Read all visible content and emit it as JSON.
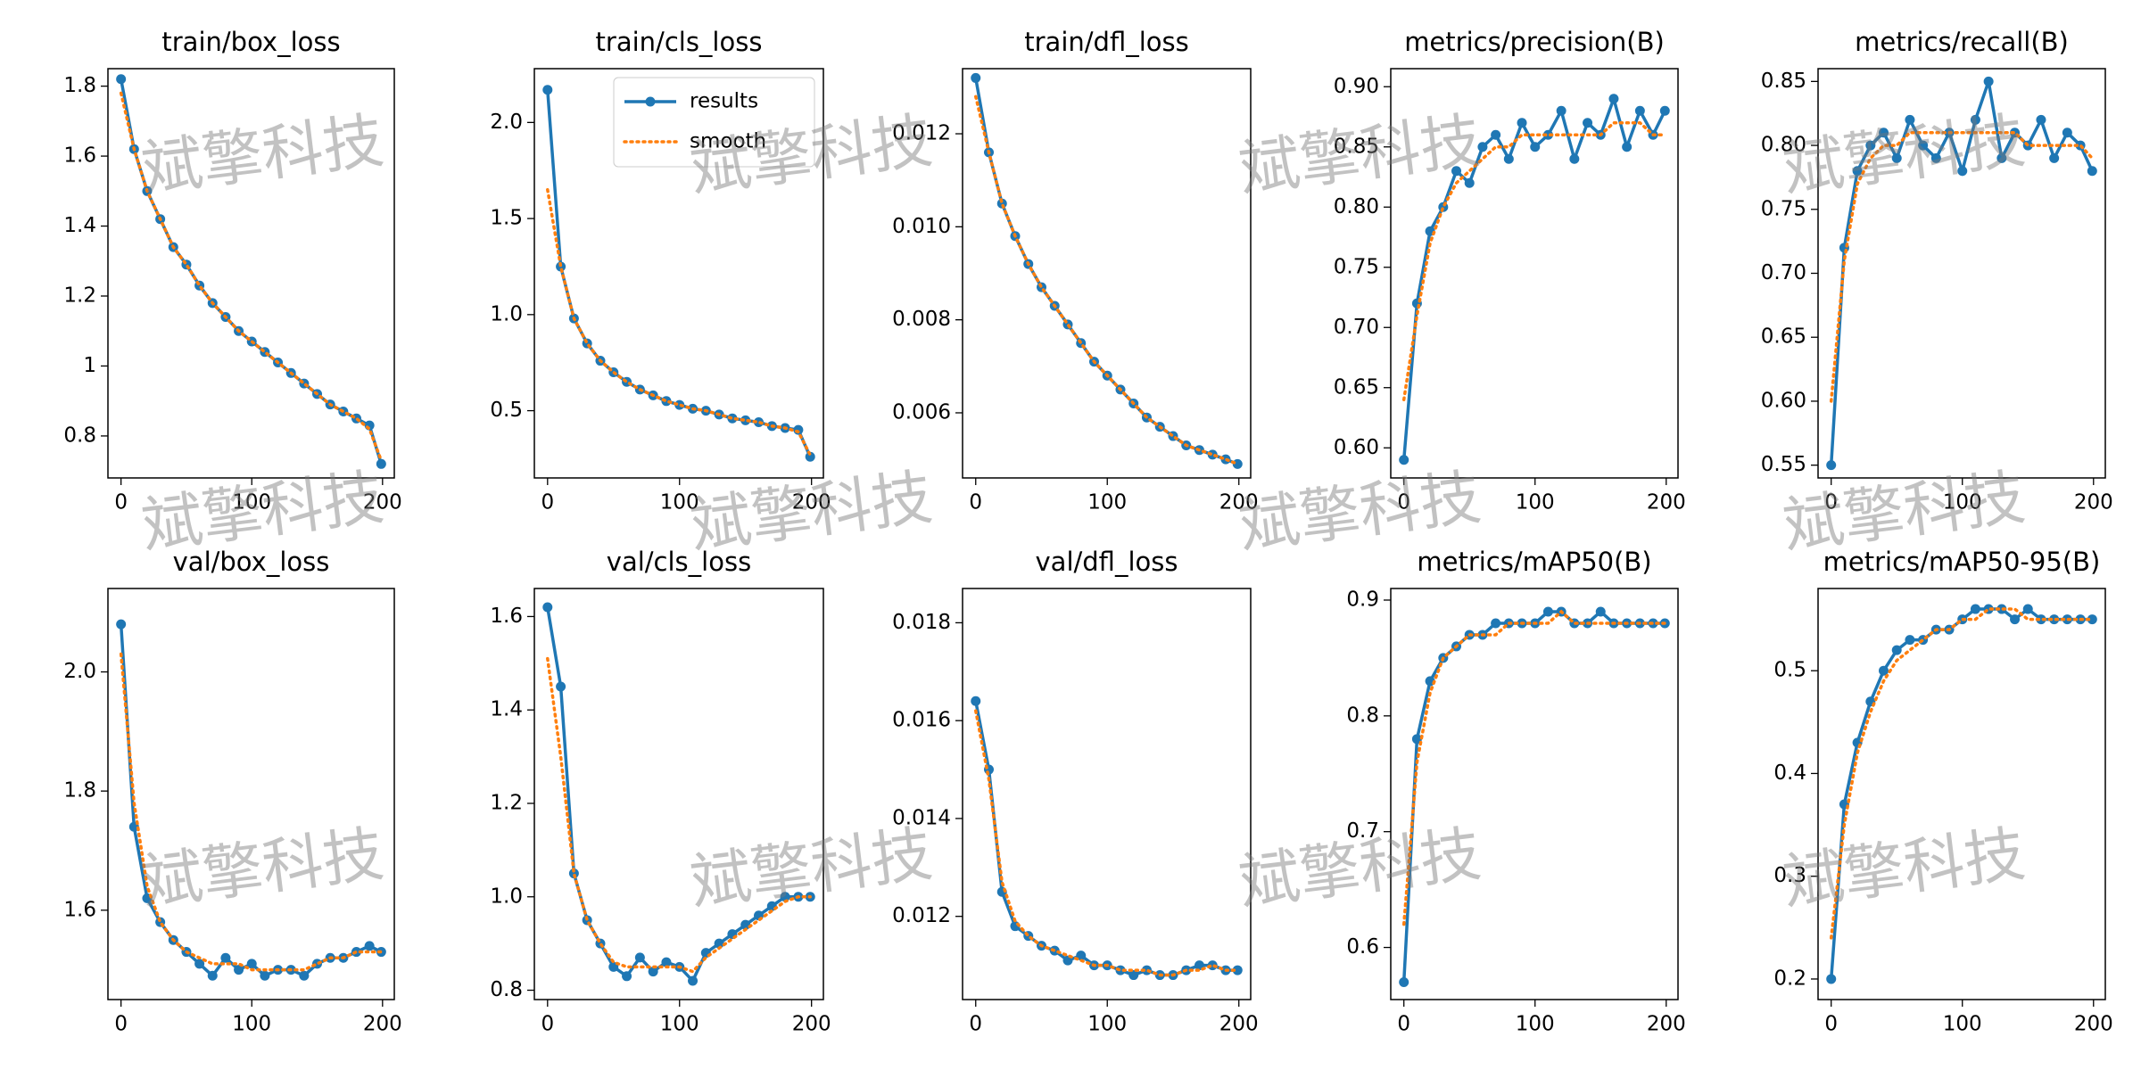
{
  "watermark": "斌擎科技",
  "chart_data": [
    {
      "type": "line",
      "title": "train/box_loss",
      "x": [
        0,
        10,
        20,
        30,
        40,
        50,
        60,
        70,
        80,
        90,
        100,
        110,
        120,
        130,
        140,
        150,
        160,
        170,
        180,
        190,
        199
      ],
      "xlim": [
        -10,
        209
      ],
      "xticks": [
        0,
        100,
        200
      ],
      "ylim": [
        0.68,
        1.85
      ],
      "yticks": [
        0.8,
        1.0,
        {
          "value": 1,
          "label": "1.0"
        },
        1.2,
        1.4,
        1.6,
        1.8
      ],
      "series": [
        {
          "name": "results",
          "color": "#1f77b4",
          "values": [
            1.82,
            1.62,
            1.5,
            1.42,
            1.34,
            1.29,
            1.23,
            1.18,
            1.14,
            1.1,
            1.07,
            1.04,
            1.01,
            0.98,
            0.95,
            0.92,
            0.89,
            0.87,
            0.85,
            0.83,
            0.72
          ]
        },
        {
          "name": "smooth",
          "color": "#ff7f0e",
          "values": [
            1.78,
            1.62,
            1.5,
            1.42,
            1.34,
            1.29,
            1.23,
            1.18,
            1.14,
            1.1,
            1.07,
            1.04,
            1.01,
            0.98,
            0.95,
            0.92,
            0.89,
            0.87,
            0.85,
            0.82,
            0.73
          ]
        }
      ]
    },
    {
      "type": "line",
      "title": "train/cls_loss",
      "legend": "upper right",
      "x": [
        0,
        10,
        20,
        30,
        40,
        50,
        60,
        70,
        80,
        90,
        100,
        110,
        120,
        130,
        140,
        150,
        160,
        170,
        180,
        190,
        199
      ],
      "xlim": [
        -10,
        209
      ],
      "xticks": [
        0,
        100,
        200
      ],
      "ylim": [
        0.15,
        2.28
      ],
      "yticks": [
        0.5,
        {
          "value": 1,
          "label": "1.0"
        },
        1.5,
        {
          "value": 2,
          "label": "2.0"
        }
      ],
      "series": [
        {
          "name": "results",
          "color": "#1f77b4",
          "values": [
            2.17,
            1.25,
            0.98,
            0.85,
            0.76,
            0.7,
            0.65,
            0.61,
            0.58,
            0.55,
            0.53,
            0.51,
            0.5,
            0.48,
            0.46,
            0.45,
            0.44,
            0.42,
            0.41,
            0.4,
            0.26
          ]
        },
        {
          "name": "smooth",
          "color": "#ff7f0e",
          "values": [
            1.65,
            1.25,
            0.98,
            0.85,
            0.76,
            0.7,
            0.65,
            0.61,
            0.58,
            0.55,
            0.53,
            0.51,
            0.5,
            0.48,
            0.46,
            0.45,
            0.44,
            0.42,
            0.41,
            0.39,
            0.27
          ]
        }
      ]
    },
    {
      "type": "line",
      "title": "train/dfl_loss",
      "x": [
        0,
        10,
        20,
        30,
        40,
        50,
        60,
        70,
        80,
        90,
        100,
        110,
        120,
        130,
        140,
        150,
        160,
        170,
        180,
        190,
        199
      ],
      "xlim": [
        -10,
        209
      ],
      "xticks": [
        0,
        100,
        200
      ],
      "ylim": [
        0.0046,
        0.0134
      ],
      "yticks": [
        0.006,
        0.008,
        {
          "value": 0.01,
          "label": "0.010"
        },
        0.012
      ],
      "series": [
        {
          "name": "results",
          "color": "#1f77b4",
          "values": [
            0.0132,
            0.0116,
            0.0105,
            0.0098,
            0.0092,
            0.0087,
            0.0083,
            0.0079,
            0.0075,
            0.0071,
            0.0068,
            0.0065,
            0.0062,
            0.0059,
            0.0057,
            0.0055,
            0.0053,
            0.0052,
            0.0051,
            0.005,
            0.0049
          ]
        },
        {
          "name": "smooth",
          "color": "#ff7f0e",
          "values": [
            0.0128,
            0.0116,
            0.0105,
            0.0098,
            0.0092,
            0.0087,
            0.0083,
            0.0079,
            0.0075,
            0.0071,
            0.0068,
            0.0065,
            0.0062,
            0.0059,
            0.0057,
            0.0055,
            0.0053,
            0.0052,
            0.0051,
            0.005,
            0.0049
          ]
        }
      ]
    },
    {
      "type": "line",
      "title": "metrics/precision(B)",
      "x": [
        0,
        10,
        20,
        30,
        40,
        50,
        60,
        70,
        80,
        90,
        100,
        110,
        120,
        130,
        140,
        150,
        160,
        170,
        180,
        190,
        199
      ],
      "xlim": [
        -10,
        209
      ],
      "xticks": [
        0,
        100,
        200
      ],
      "ylim": [
        0.575,
        0.915
      ],
      "yticks": [
        {
          "value": 0.6,
          "label": "0.60"
        },
        0.65,
        {
          "value": 0.7,
          "label": "0.70"
        },
        0.75,
        {
          "value": 0.8,
          "label": "0.80"
        },
        0.85,
        {
          "value": 0.9,
          "label": "0.90"
        }
      ],
      "series": [
        {
          "name": "results",
          "color": "#1f77b4",
          "values": [
            0.59,
            0.72,
            0.78,
            0.8,
            0.83,
            0.82,
            0.85,
            0.86,
            0.84,
            0.87,
            0.85,
            0.86,
            0.88,
            0.84,
            0.87,
            0.86,
            0.89,
            0.85,
            0.88,
            0.86,
            0.88
          ]
        },
        {
          "name": "smooth",
          "color": "#ff7f0e",
          "values": [
            0.64,
            0.71,
            0.77,
            0.8,
            0.82,
            0.83,
            0.84,
            0.85,
            0.85,
            0.86,
            0.86,
            0.86,
            0.86,
            0.86,
            0.86,
            0.86,
            0.87,
            0.87,
            0.87,
            0.86,
            0.86
          ]
        }
      ]
    },
    {
      "type": "line",
      "title": "metrics/recall(B)",
      "x": [
        0,
        10,
        20,
        30,
        40,
        50,
        60,
        70,
        80,
        90,
        100,
        110,
        120,
        130,
        140,
        150,
        160,
        170,
        180,
        190,
        199
      ],
      "xlim": [
        -10,
        209
      ],
      "xticks": [
        0,
        100,
        200
      ],
      "ylim": [
        0.54,
        0.86
      ],
      "yticks": [
        0.55,
        {
          "value": 0.6,
          "label": "0.60"
        },
        0.65,
        {
          "value": 0.7,
          "label": "0.70"
        },
        0.75,
        {
          "value": 0.8,
          "label": "0.80"
        },
        0.85
      ],
      "series": [
        {
          "name": "results",
          "color": "#1f77b4",
          "values": [
            0.55,
            0.72,
            0.78,
            0.8,
            0.81,
            0.79,
            0.82,
            0.8,
            0.79,
            0.81,
            0.78,
            0.82,
            0.85,
            0.79,
            0.81,
            0.8,
            0.82,
            0.79,
            0.81,
            0.8,
            0.78
          ]
        },
        {
          "name": "smooth",
          "color": "#ff7f0e",
          "values": [
            0.6,
            0.71,
            0.77,
            0.79,
            0.8,
            0.8,
            0.81,
            0.81,
            0.81,
            0.81,
            0.81,
            0.81,
            0.81,
            0.81,
            0.81,
            0.8,
            0.8,
            0.8,
            0.8,
            0.8,
            0.79
          ]
        }
      ]
    },
    {
      "type": "line",
      "title": "val/box_loss",
      "x": [
        0,
        10,
        20,
        30,
        40,
        50,
        60,
        70,
        80,
        90,
        100,
        110,
        120,
        130,
        140,
        150,
        160,
        170,
        180,
        190,
        199
      ],
      "xlim": [
        -10,
        209
      ],
      "xticks": [
        0,
        100,
        200
      ],
      "ylim": [
        1.45,
        2.14
      ],
      "yticks": [
        1.6,
        1.8,
        {
          "value": 2,
          "label": "2.0"
        }
      ],
      "series": [
        {
          "name": "results",
          "color": "#1f77b4",
          "values": [
            2.08,
            1.74,
            1.62,
            1.58,
            1.55,
            1.53,
            1.51,
            1.49,
            1.52,
            1.5,
            1.51,
            1.49,
            1.5,
            1.5,
            1.49,
            1.51,
            1.52,
            1.52,
            1.53,
            1.54,
            1.53
          ]
        },
        {
          "name": "smooth",
          "color": "#ff7f0e",
          "values": [
            2.03,
            1.78,
            1.64,
            1.58,
            1.55,
            1.53,
            1.52,
            1.51,
            1.51,
            1.51,
            1.5,
            1.5,
            1.5,
            1.5,
            1.5,
            1.51,
            1.52,
            1.52,
            1.53,
            1.53,
            1.53
          ]
        }
      ]
    },
    {
      "type": "line",
      "title": "val/cls_loss",
      "x": [
        0,
        10,
        20,
        30,
        40,
        50,
        60,
        70,
        80,
        90,
        100,
        110,
        120,
        130,
        140,
        150,
        160,
        170,
        180,
        190,
        199
      ],
      "xlim": [
        -10,
        209
      ],
      "xticks": [
        0,
        100,
        200
      ],
      "ylim": [
        0.78,
        1.66
      ],
      "yticks": [
        0.8,
        {
          "value": 1,
          "label": "1.0"
        },
        1.2,
        1.4,
        1.6
      ],
      "series": [
        {
          "name": "results",
          "color": "#1f77b4",
          "values": [
            1.62,
            1.45,
            1.05,
            0.95,
            0.9,
            0.85,
            0.83,
            0.87,
            0.84,
            0.86,
            0.85,
            0.82,
            0.88,
            0.9,
            0.92,
            0.94,
            0.96,
            0.98,
            1,
            1,
            1
          ]
        },
        {
          "name": "smooth",
          "color": "#ff7f0e",
          "values": [
            1.51,
            1.3,
            1.05,
            0.95,
            0.9,
            0.86,
            0.85,
            0.85,
            0.85,
            0.85,
            0.85,
            0.84,
            0.87,
            0.89,
            0.91,
            0.93,
            0.95,
            0.97,
            0.99,
            1,
            1
          ]
        }
      ]
    },
    {
      "type": "line",
      "title": "val/dfl_loss",
      "x": [
        0,
        10,
        20,
        30,
        40,
        50,
        60,
        70,
        80,
        90,
        100,
        110,
        120,
        130,
        140,
        150,
        160,
        170,
        180,
        190,
        199
      ],
      "xlim": [
        -10,
        209
      ],
      "xticks": [
        0,
        100,
        200
      ],
      "ylim": [
        0.0103,
        0.0187
      ],
      "yticks": [
        0.012,
        0.014,
        0.016,
        0.018
      ],
      "series": [
        {
          "name": "results",
          "color": "#1f77b4",
          "values": [
            0.0164,
            0.015,
            0.0125,
            0.0118,
            0.0116,
            0.0114,
            0.0113,
            0.0111,
            0.0112,
            0.011,
            0.011,
            0.0109,
            0.0108,
            0.0109,
            0.0108,
            0.0108,
            0.0109,
            0.011,
            0.011,
            0.0109,
            0.0109
          ]
        },
        {
          "name": "smooth",
          "color": "#ff7f0e",
          "values": [
            0.0162,
            0.0148,
            0.0127,
            0.0119,
            0.0116,
            0.0114,
            0.0113,
            0.0112,
            0.0111,
            0.011,
            0.011,
            0.0109,
            0.0109,
            0.0109,
            0.0108,
            0.0108,
            0.0109,
            0.0109,
            0.011,
            0.0109,
            0.0109
          ]
        }
      ]
    },
    {
      "type": "line",
      "title": "metrics/mAP50(B)",
      "x": [
        0,
        10,
        20,
        30,
        40,
        50,
        60,
        70,
        80,
        90,
        100,
        110,
        120,
        130,
        140,
        150,
        160,
        170,
        180,
        190,
        199
      ],
      "xlim": [
        -10,
        209
      ],
      "xticks": [
        0,
        100,
        200
      ],
      "ylim": [
        0.555,
        0.91
      ],
      "yticks": [
        0.6,
        0.7,
        0.8,
        0.9
      ],
      "series": [
        {
          "name": "results",
          "color": "#1f77b4",
          "values": [
            0.57,
            0.78,
            0.83,
            0.85,
            0.86,
            0.87,
            0.87,
            0.88,
            0.88,
            0.88,
            0.88,
            0.89,
            0.89,
            0.88,
            0.88,
            0.89,
            0.88,
            0.88,
            0.88,
            0.88,
            0.88
          ]
        },
        {
          "name": "smooth",
          "color": "#ff7f0e",
          "values": [
            0.62,
            0.76,
            0.82,
            0.85,
            0.86,
            0.87,
            0.87,
            0.87,
            0.88,
            0.88,
            0.88,
            0.88,
            0.89,
            0.88,
            0.88,
            0.88,
            0.88,
            0.88,
            0.88,
            0.88,
            0.88
          ]
        }
      ]
    },
    {
      "type": "line",
      "title": "metrics/mAP50-95(B)",
      "x": [
        0,
        10,
        20,
        30,
        40,
        50,
        60,
        70,
        80,
        90,
        100,
        110,
        120,
        130,
        140,
        150,
        160,
        170,
        180,
        190,
        199
      ],
      "xlim": [
        -10,
        209
      ],
      "xticks": [
        0,
        100,
        200
      ],
      "ylim": [
        0.18,
        0.58
      ],
      "yticks": [
        0.2,
        0.3,
        0.4,
        0.5
      ],
      "series": [
        {
          "name": "results",
          "color": "#1f77b4",
          "values": [
            0.2,
            0.37,
            0.43,
            0.47,
            0.5,
            0.52,
            0.53,
            0.53,
            0.54,
            0.54,
            0.55,
            0.56,
            0.56,
            0.56,
            0.55,
            0.56,
            0.55,
            0.55,
            0.55,
            0.55,
            0.55
          ]
        },
        {
          "name": "smooth",
          "color": "#ff7f0e",
          "values": [
            0.24,
            0.35,
            0.42,
            0.46,
            0.49,
            0.51,
            0.52,
            0.53,
            0.54,
            0.54,
            0.55,
            0.55,
            0.56,
            0.56,
            0.56,
            0.55,
            0.55,
            0.55,
            0.55,
            0.55,
            0.55
          ]
        }
      ]
    }
  ]
}
